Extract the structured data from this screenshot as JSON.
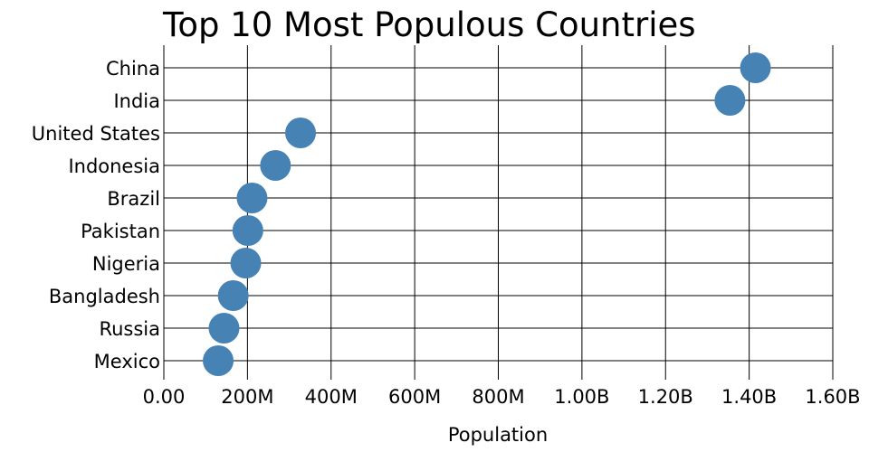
{
  "chart_data": {
    "type": "scatter",
    "title": "Top 10 Most Populous Countries",
    "xlabel": "Population",
    "ylabel": "",
    "xlim": [
      0,
      1600000000
    ],
    "x_ticks": [
      0,
      200000000,
      400000000,
      600000000,
      800000000,
      1000000000,
      1200000000,
      1400000000,
      1600000000
    ],
    "x_tick_labels": [
      "0.00",
      "200M",
      "400M",
      "600M",
      "800M",
      "1.00B",
      "1.20B",
      "1.40B",
      "1.60B"
    ],
    "grid": true,
    "categories": [
      "China",
      "India",
      "United States",
      "Indonesia",
      "Brazil",
      "Pakistan",
      "Nigeria",
      "Bangladesh",
      "Russia",
      "Mexico"
    ],
    "values": [
      1415000000,
      1354000000,
      327000000,
      267000000,
      211000000,
      201000000,
      196000000,
      166000000,
      144000000,
      130000000
    ],
    "point_color": "#4682b4"
  }
}
